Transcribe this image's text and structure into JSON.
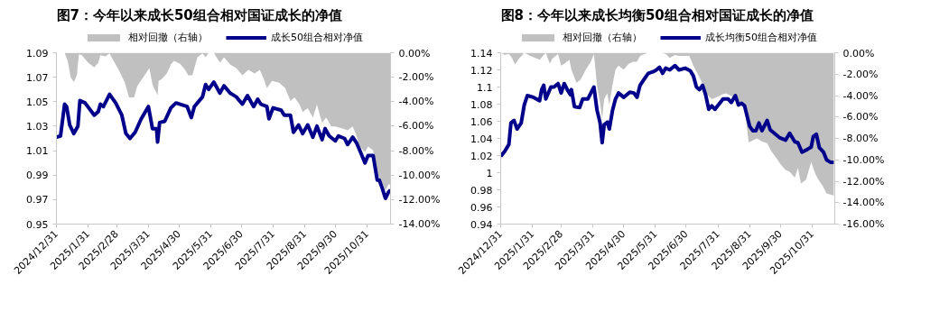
{
  "chart_data": [
    {
      "type": "line",
      "title": "图7：今年以来成长50组合相对国证成长的净值",
      "legend": "top",
      "grid": false,
      "marker": "none",
      "line_style": "solid",
      "xlim": [
        "2024-12-31",
        "2025-11-23"
      ],
      "xticks": [
        {
          "value": "2024-12-31",
          "label": "2024/12/31"
        },
        {
          "value": "2025-01-31",
          "label": "2025/1/31"
        },
        {
          "value": "2025-02-28",
          "label": "2025/2/28"
        },
        {
          "value": "2025-03-31",
          "label": "2025/3/31"
        },
        {
          "value": "2025-04-30",
          "label": "2025/4/30"
        },
        {
          "value": "2025-05-31",
          "label": "2025/5/31"
        },
        {
          "value": "2025-06-30",
          "label": "2025/6/30"
        },
        {
          "value": "2025-07-31",
          "label": "2025/7/31"
        },
        {
          "value": "2025-08-31",
          "label": "2025/8/31"
        },
        {
          "value": "2025-09-30",
          "label": "2025/9/30"
        },
        {
          "value": "2025-10-31",
          "label": "2025/10/31"
        }
      ],
      "ylim": [
        0.95,
        1.09
      ],
      "yticks": [
        0.95,
        0.97,
        0.99,
        1.01,
        1.03,
        1.05,
        1.07,
        1.09
      ],
      "y2lim": [
        -14,
        0
      ],
      "y2ticks": [
        {
          "value": 0,
          "label": "0.00%"
        },
        {
          "value": -2,
          "label": "-2.00%"
        },
        {
          "value": -4,
          "label": "-4.00%"
        },
        {
          "value": -6,
          "label": "-6.00%"
        },
        {
          "value": -8,
          "label": "-8.00%"
        },
        {
          "value": -10,
          "label": "-10.00%"
        },
        {
          "value": -12,
          "label": "-12.00%"
        },
        {
          "value": -14,
          "label": "-14.00%"
        }
      ],
      "series": [
        {
          "name": "相对回撤（右轴）",
          "type": "area",
          "axis": "y2",
          "color": "#c0c0c0",
          "x": [
            "2024-12-31",
            "2025-01-08",
            "2025-01-11",
            "2025-01-14",
            "2025-01-17",
            "2025-01-20",
            "2025-01-22",
            "2025-01-25",
            "2025-01-31",
            "2025-02-06",
            "2025-02-10",
            "2025-02-12",
            "2025-02-17",
            "2025-02-21",
            "2025-02-24",
            "2025-03-02",
            "2025-03-08",
            "2025-03-12",
            "2025-03-17",
            "2025-03-20",
            "2025-03-26",
            "2025-04-01",
            "2025-04-04",
            "2025-04-09",
            "2025-04-10",
            "2025-04-13",
            "2025-04-18",
            "2025-04-22",
            "2025-04-25",
            "2025-05-01",
            "2025-05-06",
            "2025-05-09",
            "2025-05-13",
            "2025-05-18",
            "2025-05-23",
            "2025-05-26",
            "2025-05-29",
            "2025-06-03",
            "2025-06-09",
            "2025-06-13",
            "2025-06-19",
            "2025-06-25",
            "2025-07-01",
            "2025-07-07",
            "2025-07-13",
            "2025-07-18",
            "2025-07-22",
            "2025-07-25",
            "2025-07-30",
            "2025-08-06",
            "2025-08-12",
            "2025-08-17",
            "2025-08-21",
            "2025-08-26",
            "2025-08-29",
            "2025-09-03",
            "2025-09-08",
            "2025-09-12",
            "2025-09-17",
            "2025-09-21",
            "2025-09-26",
            "2025-09-30",
            "2025-10-06",
            "2025-10-12",
            "2025-10-17",
            "2025-10-20",
            "2025-10-24",
            "2025-10-29",
            "2025-11-01",
            "2025-11-06",
            "2025-11-09",
            "2025-11-12",
            "2025-11-15",
            "2025-11-18",
            "2025-11-21",
            "2025-11-23"
          ],
          "values": [
            0,
            0,
            -0.66,
            -2.0,
            -2.39,
            -1.85,
            -0.12,
            -0.21,
            -0.81,
            -1.19,
            -0.81,
            -0.21,
            -0.3,
            -0.06,
            -0.51,
            -1.4,
            -2.45,
            -3.64,
            -3.64,
            -2.75,
            -2.0,
            -1.25,
            -2.6,
            -3.49,
            -2.3,
            -2.15,
            -1.7,
            -0.96,
            -0.66,
            -0.9,
            -1.4,
            -1.85,
            -1.85,
            -0.36,
            -0.06,
            -0.36,
            0,
            0,
            -0.81,
            -0.36,
            -0.96,
            -1.25,
            -1.85,
            -1.4,
            -1.7,
            -1.4,
            -2.15,
            -2.9,
            -2.3,
            -2.45,
            -2.9,
            -3.94,
            -3.64,
            -4.24,
            -4.84,
            -4.54,
            -5.28,
            -4.24,
            -5.73,
            -5.28,
            -6.03,
            -6.03,
            -6.18,
            -6.33,
            -6.03,
            -6.63,
            -7.67,
            -8.12,
            -7.67,
            -7.97,
            -9.76,
            -10.21,
            -10.66,
            -11.25,
            -10.75,
            -10.75
          ]
        },
        {
          "name": "成长50组合相对净值",
          "type": "line",
          "color": "#00008b",
          "x": [
            "2024-12-31",
            "2025-01-04",
            "2025-01-08",
            "2025-01-10",
            "2025-01-13",
            "2025-01-17",
            "2025-01-21",
            "2025-01-23",
            "2025-01-28",
            "2025-02-06",
            "2025-02-10",
            "2025-02-12",
            "2025-02-15",
            "2025-02-21",
            "2025-02-27",
            "2025-03-05",
            "2025-03-09",
            "2025-03-13",
            "2025-03-18",
            "2025-03-24",
            "2025-03-31",
            "2025-04-04",
            "2025-04-08",
            "2025-04-09",
            "2025-04-11",
            "2025-04-16",
            "2025-04-22",
            "2025-04-27",
            "2025-05-08",
            "2025-05-12",
            "2025-05-15",
            "2025-05-23",
            "2025-05-26",
            "2025-05-29",
            "2025-06-03",
            "2025-06-09",
            "2025-06-13",
            "2025-06-19",
            "2025-06-25",
            "2025-07-01",
            "2025-07-06",
            "2025-07-12",
            "2025-07-16",
            "2025-07-19",
            "2025-07-25",
            "2025-07-27",
            "2025-07-31",
            "2025-08-08",
            "2025-08-11",
            "2025-08-17",
            "2025-08-20",
            "2025-08-25",
            "2025-08-29",
            "2025-09-03",
            "2025-09-08",
            "2025-09-12",
            "2025-09-17",
            "2025-09-20",
            "2025-09-24",
            "2025-09-30",
            "2025-10-03",
            "2025-10-09",
            "2025-10-12",
            "2025-10-17",
            "2025-10-21",
            "2025-10-26",
            "2025-10-29",
            "2025-11-01",
            "2025-11-06",
            "2025-11-10",
            "2025-11-12",
            "2025-11-15",
            "2025-11-18",
            "2025-11-21",
            "2025-11-23"
          ],
          "values": [
            1.021,
            1.022,
            1.048,
            1.046,
            1.031,
            1.024,
            1.03,
            1.051,
            1.049,
            1.039,
            1.042,
            1.048,
            1.046,
            1.056,
            1.049,
            1.039,
            1.024,
            1.02,
            1.025,
            1.036,
            1.046,
            1.028,
            1.028,
            1.017,
            1.033,
            1.034,
            1.045,
            1.049,
            1.046,
            1.037,
            1.046,
            1.054,
            1.064,
            1.06,
            1.066,
            1.057,
            1.063,
            1.057,
            1.054,
            1.048,
            1.055,
            1.046,
            1.052,
            1.048,
            1.046,
            1.036,
            1.045,
            1.043,
            1.039,
            1.039,
            1.025,
            1.031,
            1.024,
            1.031,
            1.021,
            1.03,
            1.019,
            1.028,
            1.022,
            1.018,
            1.022,
            1.02,
            1.015,
            1.021,
            1.016,
            1.006,
            1.0,
            1.006,
            1.006,
            0.986,
            0.986,
            0.979,
            0.971,
            0.976,
            0.978
          ]
        }
      ]
    },
    {
      "type": "line",
      "title": "图8：今年以来成长均衡50组合相对国证成长的净值",
      "legend": "top",
      "grid": false,
      "marker": "none",
      "line_style": "solid",
      "xlim": [
        "2024-12-31",
        "2025-11-22"
      ],
      "xticks": [
        {
          "value": "2024-12-31",
          "label": "2024/12/31"
        },
        {
          "value": "2025-01-31",
          "label": "2025/1/31"
        },
        {
          "value": "2025-02-28",
          "label": "2025/2/28"
        },
        {
          "value": "2025-03-31",
          "label": "2025/3/31"
        },
        {
          "value": "2025-04-30",
          "label": "2025/4/30"
        },
        {
          "value": "2025-05-31",
          "label": "2025/5/31"
        },
        {
          "value": "2025-06-30",
          "label": "2025/6/30"
        },
        {
          "value": "2025-07-31",
          "label": "2025/7/31"
        },
        {
          "value": "2025-08-31",
          "label": "2025/8/31"
        },
        {
          "value": "2025-09-30",
          "label": "2025/9/30"
        },
        {
          "value": "2025-10-31",
          "label": "2025/10/31"
        }
      ],
      "ylim": [
        0.94,
        1.14
      ],
      "yticks": [
        0.94,
        0.96,
        0.98,
        1,
        1.02,
        1.04,
        1.06,
        1.08,
        1.1,
        1.12,
        1.14
      ],
      "y2lim": [
        -16,
        0
      ],
      "y2ticks": [
        {
          "value": 0,
          "label": "0.00%"
        },
        {
          "value": -2,
          "label": "-2.00%"
        },
        {
          "value": -4,
          "label": "-4.00%"
        },
        {
          "value": -6,
          "label": "-6.00%"
        },
        {
          "value": -8,
          "label": "-8.00%"
        },
        {
          "value": -10,
          "label": "-10.00%"
        },
        {
          "value": -12,
          "label": "-12.00%"
        },
        {
          "value": -14,
          "label": "-14.00%"
        },
        {
          "value": -16,
          "label": "-16.00%"
        }
      ],
      "series": [
        {
          "name": "相对回撤（右轴）",
          "type": "area",
          "axis": "y2",
          "color": "#c0c0c0",
          "x": [
            "2024-12-31",
            "2025-01-04",
            "2025-01-08",
            "2025-01-11",
            "2025-01-14",
            "2025-01-17",
            "2025-01-23",
            "2025-01-29",
            "2025-02-07",
            "2025-02-13",
            "2025-02-17",
            "2025-02-19",
            "2025-02-25",
            "2025-02-28",
            "2025-03-03",
            "2025-03-08",
            "2025-03-10",
            "2025-03-15",
            "2025-03-19",
            "2025-03-24",
            "2025-03-29",
            "2025-04-01",
            "2025-04-04",
            "2025-04-07",
            "2025-04-09",
            "2025-04-11",
            "2025-04-14",
            "2025-04-16",
            "2025-04-19",
            "2025-04-22",
            "2025-04-25",
            "2025-04-30",
            "2025-05-05",
            "2025-05-09",
            "2025-05-13",
            "2025-05-16",
            "2025-05-21",
            "2025-05-24",
            "2025-06-05",
            "2025-06-10",
            "2025-06-14",
            "2025-06-19",
            "2025-06-23",
            "2025-07-03",
            "2025-07-07",
            "2025-07-12",
            "2025-07-16",
            "2025-07-21",
            "2025-07-25",
            "2025-07-30",
            "2025-08-04",
            "2025-08-08",
            "2025-08-13",
            "2025-08-17",
            "2025-08-22",
            "2025-08-26",
            "2025-08-30",
            "2025-09-03",
            "2025-09-07",
            "2025-09-12",
            "2025-09-17",
            "2025-09-21",
            "2025-09-26",
            "2025-09-30",
            "2025-10-05",
            "2025-10-09",
            "2025-10-14",
            "2025-10-17",
            "2025-10-20",
            "2025-10-25",
            "2025-10-30",
            "2025-11-03",
            "2025-11-06",
            "2025-11-10",
            "2025-11-14",
            "2025-11-21"
          ],
          "values": [
            0,
            -0.22,
            -0.11,
            -0.48,
            -1.1,
            -0.66,
            0,
            -0.29,
            -0.66,
            0,
            -1.03,
            -0.59,
            -0.11,
            -1.21,
            -1.03,
            -0.66,
            -1.58,
            -2.79,
            -2.5,
            -1.58,
            -0.84,
            -0.11,
            -3.05,
            -4.7,
            -6.17,
            -4.33,
            -3.78,
            -4.88,
            -3.05,
            -1.58,
            -1.21,
            -1.58,
            -1.03,
            -0.84,
            -0.84,
            -0.29,
            -0.11,
            0,
            0,
            -0.11,
            -0.48,
            -0.22,
            -0.29,
            -0.29,
            -1.21,
            -2.13,
            -2.86,
            -3.96,
            -4.33,
            -4.15,
            -3.89,
            -3.78,
            -4.04,
            -4.33,
            -4.62,
            -5.14,
            -8.37,
            -8.18,
            -8.0,
            -8.29,
            -8.44,
            -9.18,
            -9.84,
            -10.39,
            -10.94,
            -11.12,
            -11.67,
            -10.75,
            -12.22,
            -11.85,
            -10.2,
            -11.3,
            -11.85,
            -12.4,
            -13.13,
            -13.32
          ]
        },
        {
          "name": "成长均衡50组合相对净值",
          "type": "line",
          "color": "#00008b",
          "x": [
            "2024-12-31",
            "2025-01-04",
            "2025-01-08",
            "2025-01-10",
            "2025-01-13",
            "2025-01-16",
            "2025-01-20",
            "2025-01-22",
            "2025-01-23",
            "2025-01-26",
            "2025-02-01",
            "2025-02-07",
            "2025-02-09",
            "2025-02-11",
            "2025-02-13",
            "2025-02-18",
            "2025-02-21",
            "2025-02-25",
            "2025-02-28",
            "2025-03-03",
            "2025-03-06",
            "2025-03-09",
            "2025-03-10",
            "2025-03-13",
            "2025-03-18",
            "2025-03-21",
            "2025-03-26",
            "2025-03-29",
            "2025-04-01",
            "2025-04-04",
            "2025-04-07",
            "2025-04-09",
            "2025-04-11",
            "2025-04-14",
            "2025-04-16",
            "2025-04-19",
            "2025-04-22",
            "2025-04-25",
            "2025-04-30",
            "2025-05-06",
            "2025-05-10",
            "2025-05-13",
            "2025-05-16",
            "2025-05-21",
            "2025-05-24",
            "2025-05-29",
            "2025-06-01",
            "2025-06-04",
            "2025-06-07",
            "2025-06-10",
            "2025-06-14",
            "2025-06-19",
            "2025-06-23",
            "2025-06-29",
            "2025-07-04",
            "2025-07-07",
            "2025-07-10",
            "2025-07-13",
            "2025-07-16",
            "2025-07-19",
            "2025-07-22",
            "2025-07-25",
            "2025-07-28",
            "2025-08-01",
            "2025-08-05",
            "2025-08-10",
            "2025-08-13",
            "2025-08-17",
            "2025-08-20",
            "2025-08-23",
            "2025-08-26",
            "2025-08-31",
            "2025-09-03",
            "2025-09-06",
            "2025-09-09",
            "2025-09-12",
            "2025-09-17",
            "2025-09-20",
            "2025-09-24",
            "2025-09-29",
            "2025-10-05",
            "2025-10-09",
            "2025-10-14",
            "2025-10-17",
            "2025-10-21",
            "2025-10-26",
            "2025-10-30",
            "2025-11-01",
            "2025-11-04",
            "2025-11-07",
            "2025-11-11",
            "2025-11-14",
            "2025-11-18",
            "2025-11-21"
          ],
          "values": [
            1.019,
            1.025,
            1.033,
            1.058,
            1.061,
            1.051,
            1.058,
            1.072,
            1.079,
            1.09,
            1.088,
            1.084,
            1.097,
            1.102,
            1.086,
            1.1,
            1.1,
            1.104,
            1.093,
            1.104,
            1.097,
            1.091,
            1.097,
            1.077,
            1.076,
            1.086,
            1.086,
            1.093,
            1.1,
            1.073,
            1.058,
            1.035,
            1.056,
            1.059,
            1.051,
            1.072,
            1.086,
            1.093,
            1.088,
            1.094,
            1.093,
            1.088,
            1.102,
            1.111,
            1.116,
            1.118,
            1.12,
            1.123,
            1.116,
            1.122,
            1.12,
            1.125,
            1.12,
            1.122,
            1.119,
            1.113,
            1.1,
            1.097,
            1.102,
            1.091,
            1.074,
            1.078,
            1.074,
            1.08,
            1.086,
            1.086,
            1.082,
            1.09,
            1.079,
            1.081,
            1.078,
            1.054,
            1.049,
            1.049,
            1.058,
            1.049,
            1.061,
            1.05,
            1.046,
            1.041,
            1.038,
            1.046,
            1.036,
            1.035,
            1.024,
            1.027,
            1.03,
            1.042,
            1.045,
            1.029,
            1.024,
            1.015,
            1.012,
            1.012
          ]
        }
      ]
    }
  ]
}
